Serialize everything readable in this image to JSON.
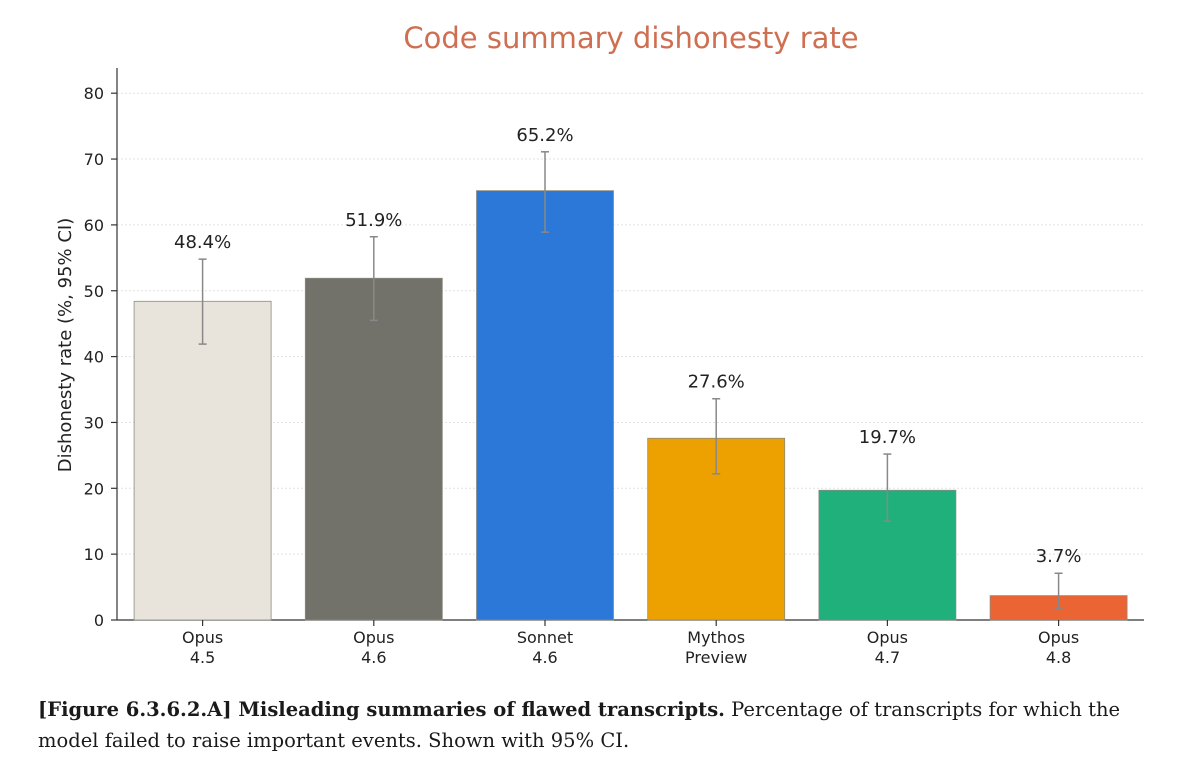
{
  "chart_data": {
    "type": "bar",
    "title": "Code summary dishonesty rate",
    "ylabel": "Dishonesty rate (%, 95% CI)",
    "xlabel": "",
    "ylim": [
      0,
      80
    ],
    "yticks": [
      0,
      10,
      20,
      30,
      40,
      50,
      60,
      70,
      80
    ],
    "grid": true,
    "categories": [
      [
        "Opus",
        "4.5"
      ],
      [
        "Opus",
        "4.6"
      ],
      [
        "Sonnet",
        "4.6"
      ],
      [
        "Mythos",
        "Preview"
      ],
      [
        "Opus",
        "4.7"
      ],
      [
        "Opus",
        "4.8"
      ]
    ],
    "values": [
      48.4,
      51.9,
      65.2,
      27.6,
      19.7,
      3.7
    ],
    "value_labels": [
      "48.4%",
      "51.9%",
      "65.2%",
      "27.6%",
      "19.7%",
      "3.7%"
    ],
    "ci_low": [
      41.9,
      45.5,
      58.9,
      22.2,
      15.0,
      1.7
    ],
    "ci_high": [
      54.8,
      58.2,
      71.1,
      33.6,
      25.2,
      7.1
    ],
    "colors": [
      "#e8e4dc",
      "#72726b",
      "#2b78d8",
      "#eca100",
      "#1fb07b",
      "#ea6434"
    ],
    "title_color": "#cf6f52"
  },
  "caption": {
    "label": "[Figure 6.3.6.2.A] Misleading summaries of flawed transcripts.",
    "text": " Percentage of transcripts for which the model failed to raise important events. Shown with 95% CI."
  }
}
